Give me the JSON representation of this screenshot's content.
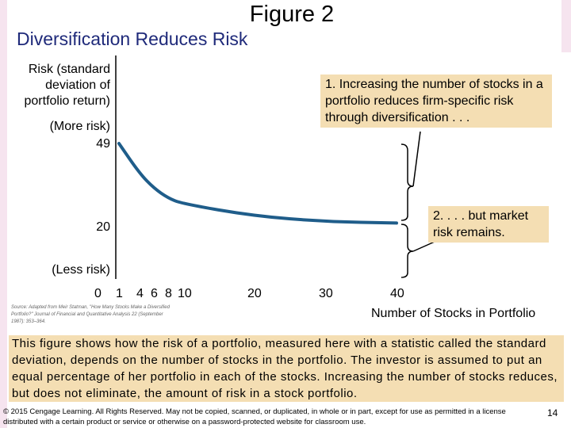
{
  "title": "Figure 2",
  "subtitle": "Diversification Reduces Risk",
  "chart_data": {
    "type": "line",
    "ylabel_lines": [
      "Risk (standard",
      "deviation of",
      "portfolio return)"
    ],
    "y_more_label": "(More risk)",
    "y_less_label": "(Less risk)",
    "y_ticks": [
      "49",
      "20"
    ],
    "x_ticks": [
      "0",
      "1",
      "4",
      "6",
      "8",
      "10",
      "20",
      "30",
      "40"
    ],
    "xlabel": "Number of Stocks in Portfolio",
    "x": [
      1,
      4,
      6,
      8,
      10,
      20,
      30,
      40
    ],
    "y": [
      49,
      38.5,
      33.3,
      29.8,
      27.8,
      23.5,
      21.5,
      21
    ],
    "annotations": [
      "1. Increasing the number of stocks in a portfolio reduces firm-specific risk through diversification . . .",
      "2. . . . but market risk remains."
    ],
    "source": "Source: Adapted from Meir Statman, \"How Many Stocks Make a Diversified Portfolio?\" Journal of Financial and Quantitative Analysis 22 (September 1987): 353–364."
  },
  "caption": "This figure shows how the risk of a portfolio, measured here with a statistic called the standard deviation, depends on the number of stocks in the portfolio. The investor is assumed to put an equal percentage of her portfolio in each of the stocks. Increasing the number of stocks reduces, but does not eliminate, the amount of risk in a stock portfolio.",
  "footer": "© 2015 Cengage Learning. All Rights Reserved. May not be copied, scanned, or duplicated, in whole or in part, except for use as permitted in a license distributed with a certain product or service or otherwise on a password-protected website for classroom use.",
  "page_number": "14",
  "colors": {
    "curve": "#1f5d8a",
    "annotation_bg": "#f4deb3",
    "subtitle": "#1f2a7a"
  }
}
